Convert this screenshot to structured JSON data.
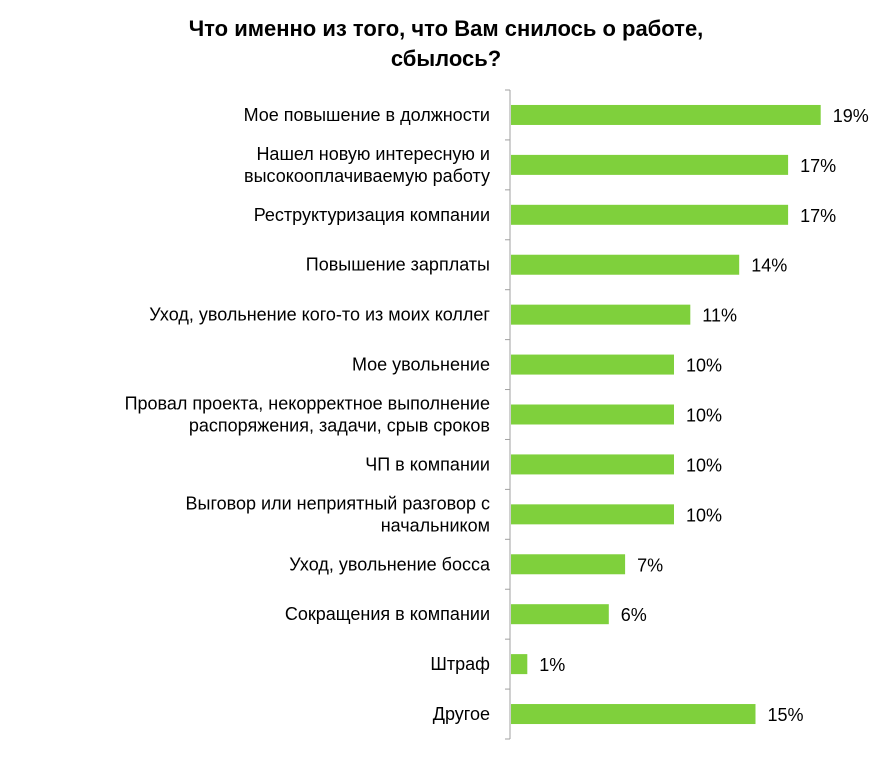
{
  "chart_data": {
    "type": "bar",
    "orientation": "horizontal",
    "title_lines": [
      "Что именно из того, что Вам снилось о работе,",
      "сбылось?"
    ],
    "categories": [
      [
        "Мое повышение  в должности"
      ],
      [
        "Нашел  новую интересную  и",
        "высокооплачиваемую работу"
      ],
      [
        "Реструктуризация компании"
      ],
      [
        "Повышение  зарплаты"
      ],
      [
        "Уход, увольнение  кого-то из моих коллег"
      ],
      [
        "Мое увольнение"
      ],
      [
        "Провал проекта, некорректное выполнение",
        "распоряжения,  задачи, срыв сроков"
      ],
      [
        "ЧП в компании"
      ],
      [
        "Выговор или  неприятный  разговор с",
        "начальником"
      ],
      [
        "Уход, увольнение  босса"
      ],
      [
        "Сокращения  в компании"
      ],
      [
        "Штраф"
      ],
      [
        "Другое"
      ]
    ],
    "values": [
      19,
      17,
      17,
      14,
      11,
      10,
      10,
      10,
      10,
      7,
      6,
      1,
      15
    ],
    "value_labels": [
      "19%",
      "17%",
      "17%",
      "14%",
      "11%",
      "10%",
      "10%",
      "10%",
      "10%",
      "7%",
      "6%",
      "1%",
      "15%"
    ],
    "xlim": [
      0,
      20
    ],
    "bar_color": "#7fd03c",
    "axis_color": "#a0a0a0",
    "grid": false,
    "legend": "none"
  }
}
